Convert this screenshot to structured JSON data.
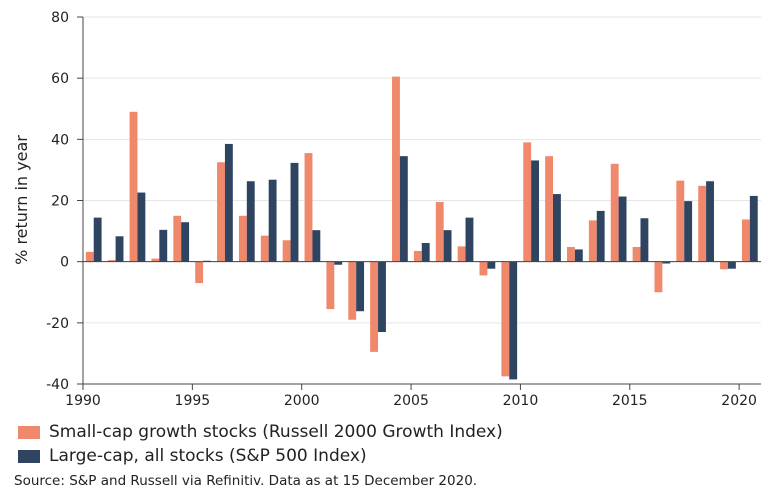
{
  "chart_data": {
    "type": "bar",
    "title": "",
    "xlabel": "",
    "ylabel": "% return in year",
    "ylim": [
      -40,
      80
    ],
    "yticks": [
      -40,
      -20,
      0,
      20,
      40,
      60,
      80
    ],
    "xticks": [
      1990,
      1995,
      2000,
      2005,
      2010,
      2015,
      2020
    ],
    "xlim": [
      1990,
      2021
    ],
    "categories": [
      1990,
      1991,
      1992,
      1993,
      1994,
      1995,
      1996,
      1997,
      1998,
      1999,
      2000,
      2001,
      2002,
      2003,
      2004,
      2005,
      2006,
      2007,
      2008,
      2009,
      2010,
      2011,
      2012,
      2013,
      2014,
      2015,
      2016,
      2017,
      2018,
      2019,
      2020
    ],
    "series": [
      {
        "name": "Small-cap growth stocks (Russell 2000 Growth Index)",
        "color": "#f0896c",
        "values": [
          3.2,
          0.5,
          49,
          1,
          15,
          -7,
          32.5,
          15,
          8.5,
          7,
          35.5,
          -15.5,
          -19,
          -29.5,
          60.5,
          3.5,
          19.5,
          5,
          -4.5,
          -37.5,
          39,
          34.5,
          4.8,
          13.5,
          32,
          4.8,
          -10,
          26.5,
          24.8,
          -2.5,
          13.8
        ]
      },
      {
        "name": "Large-cap, all stocks (S&P 500 Index)",
        "color": "#2e4460",
        "values": [
          14.4,
          8.3,
          22.6,
          10.4,
          12.9,
          0.3,
          38.5,
          26.3,
          26.8,
          32.3,
          10.3,
          -1,
          -16.2,
          -23,
          34.5,
          6.1,
          10.3,
          14.4,
          -2.3,
          -38.5,
          33.1,
          22.1,
          4,
          16.6,
          21.3,
          14.2,
          -0.6,
          19.8,
          26.3,
          -2.3,
          21.5
        ]
      }
    ]
  },
  "legend": [
    {
      "label": "Small-cap growth stocks (Russell 2000 Growth Index)",
      "color": "#f0896c"
    },
    {
      "label": "Large-cap, all stocks (S&P 500 Index)",
      "color": "#2e4460"
    }
  ],
  "source": "Source: S&P and Russell via Refinitiv. Data as at 15 December 2020."
}
